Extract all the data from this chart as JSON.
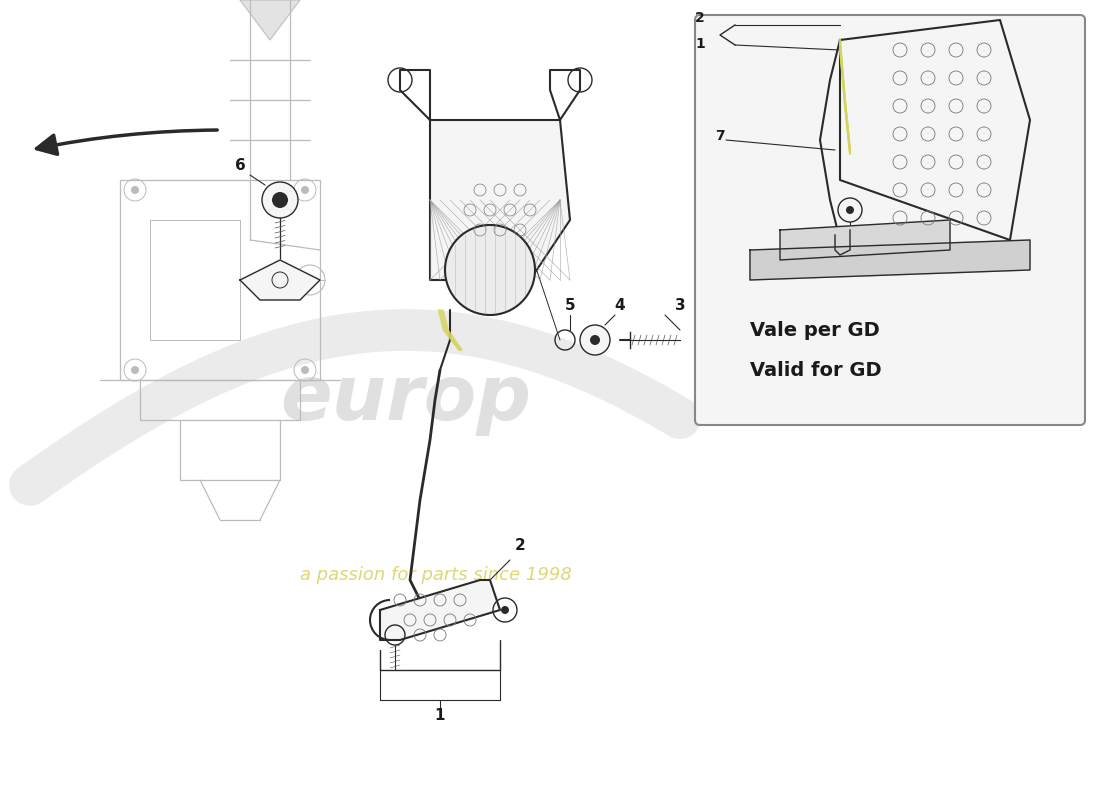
{
  "background_color": "#ffffff",
  "line_color": "#2a2a2a",
  "gray_fill": "#e8e8e8",
  "light_fill": "#f5f5f5",
  "accent_yellow": "#d4d460",
  "watermark_color": "#e0e0e0",
  "watermark_text_color": "#d8d060",
  "box_border_color": "#888888",
  "box_fill": "#f8f8f8",
  "text_color": "#1a1a1a",
  "label_color": "#222222",
  "box_text_line1": "Vale per GD",
  "box_text_line2": "Valid for GD",
  "part_labels": [
    "1",
    "2",
    "3",
    "4",
    "5",
    "6",
    "7"
  ]
}
